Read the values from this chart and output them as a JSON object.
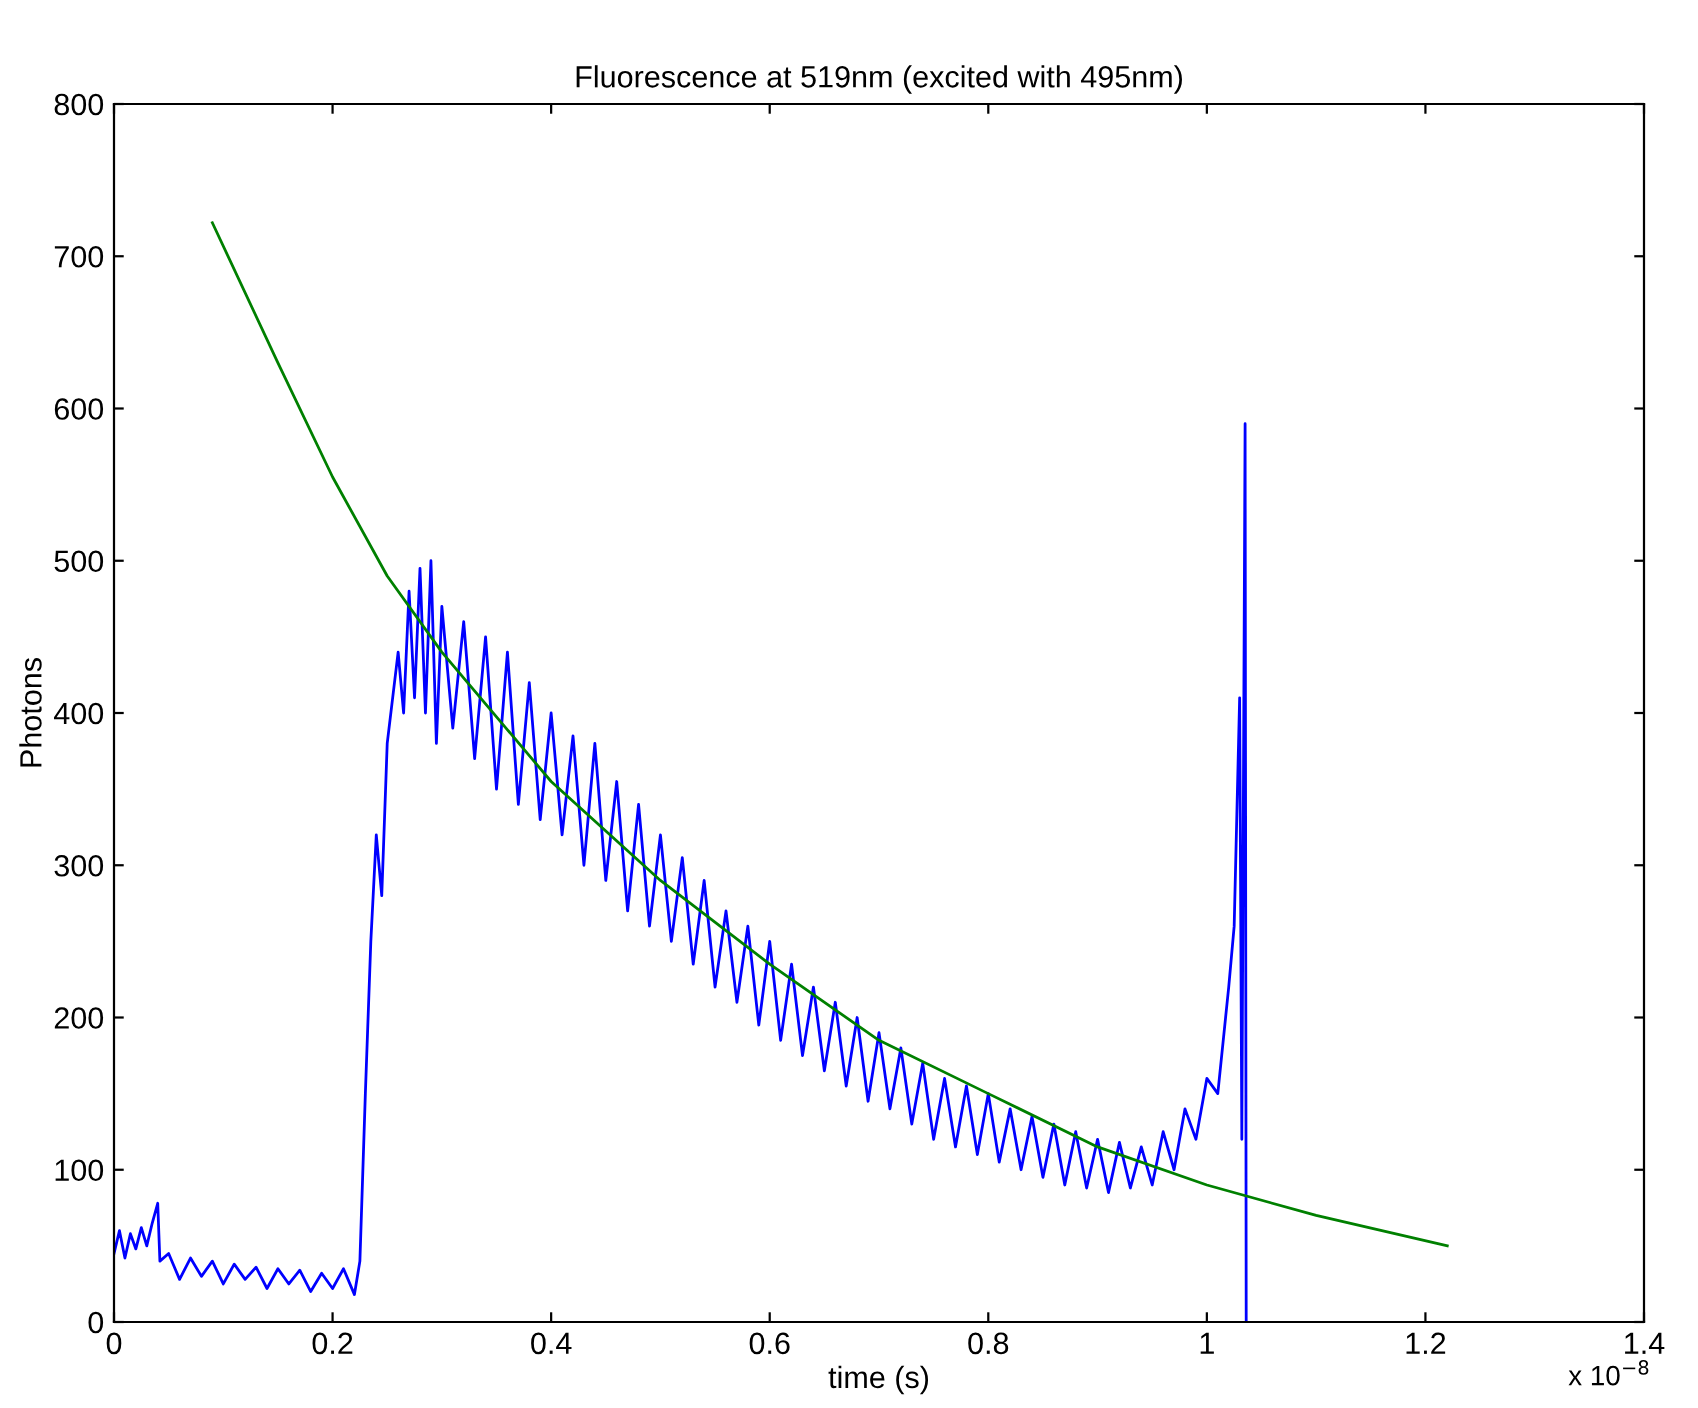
{
  "chart_data": {
    "type": "line",
    "title": "Fluorescence at 519nm (excited with 495nm)",
    "xlabel": "time (s)",
    "ylabel": "Photons",
    "annotations": [
      "x 10$^{−8}$"
    ],
    "xlim": [
      0,
      1.4
    ],
    "xticks": [
      0,
      0.2,
      0.4,
      0.6,
      0.8,
      1,
      1.2,
      1.4
    ],
    "ylim": [
      0,
      800
    ],
    "yticks": [
      0,
      100,
      200,
      300,
      400,
      500,
      600,
      700,
      800
    ],
    "grid": false,
    "legend": false,
    "marker": "none",
    "line_style": "solid",
    "series": [
      {
        "color": "#0000ff",
        "x": [
          0,
          0.005,
          0.01,
          0.015,
          0.02,
          0.025,
          0.03,
          0.035,
          0.04,
          0.042,
          0.05,
          0.06,
          0.07,
          0.08,
          0.09,
          0.1,
          0.11,
          0.12,
          0.13,
          0.14,
          0.15,
          0.16,
          0.17,
          0.18,
          0.19,
          0.2,
          0.21,
          0.22,
          0.225,
          0.23,
          0.235,
          0.24,
          0.245,
          0.25,
          0.26,
          0.265,
          0.27,
          0.275,
          0.28,
          0.285,
          0.29,
          0.295,
          0.3,
          0.31,
          0.32,
          0.33,
          0.34,
          0.35,
          0.36,
          0.37,
          0.38,
          0.39,
          0.4,
          0.41,
          0.42,
          0.43,
          0.44,
          0.45,
          0.46,
          0.47,
          0.48,
          0.49,
          0.5,
          0.51,
          0.52,
          0.53,
          0.54,
          0.55,
          0.56,
          0.57,
          0.58,
          0.59,
          0.6,
          0.61,
          0.62,
          0.63,
          0.64,
          0.65,
          0.66,
          0.67,
          0.68,
          0.69,
          0.7,
          0.71,
          0.72,
          0.73,
          0.74,
          0.75,
          0.76,
          0.77,
          0.78,
          0.79,
          0.8,
          0.81,
          0.82,
          0.83,
          0.84,
          0.85,
          0.86,
          0.87,
          0.88,
          0.89,
          0.9,
          0.91,
          0.92,
          0.93,
          0.94,
          0.95,
          0.96,
          0.97,
          0.98,
          0.99,
          1.0,
          1.01,
          1.02,
          1.025,
          1.03,
          1.032,
          1.035,
          1.036
        ],
        "values": [
          45,
          60,
          42,
          58,
          48,
          62,
          50,
          65,
          78,
          40,
          45,
          28,
          42,
          30,
          40,
          25,
          38,
          28,
          36,
          22,
          35,
          25,
          34,
          20,
          32,
          22,
          35,
          18,
          40,
          150,
          250,
          320,
          280,
          380,
          440,
          400,
          480,
          410,
          495,
          400,
          500,
          380,
          470,
          390,
          460,
          370,
          450,
          350,
          440,
          340,
          420,
          330,
          400,
          320,
          385,
          300,
          380,
          290,
          355,
          270,
          340,
          260,
          320,
          250,
          305,
          235,
          290,
          220,
          270,
          210,
          260,
          195,
          250,
          185,
          235,
          175,
          220,
          165,
          210,
          155,
          200,
          145,
          190,
          140,
          180,
          130,
          170,
          120,
          160,
          115,
          155,
          110,
          150,
          105,
          140,
          100,
          135,
          95,
          130,
          90,
          125,
          88,
          120,
          85,
          118,
          88,
          115,
          90,
          125,
          100,
          140,
          120,
          160,
          150,
          220,
          260,
          410,
          120,
          590,
          0
        ]
      },
      {
        "color": "#008000",
        "x": [
          0.09,
          0.15,
          0.2,
          0.25,
          0.3,
          0.4,
          0.5,
          0.6,
          0.7,
          0.8,
          0.9,
          1.0,
          1.1,
          1.22
        ],
        "values": [
          722,
          630,
          555,
          490,
          440,
          355,
          290,
          235,
          185,
          150,
          115,
          90,
          70,
          50
        ]
      }
    ]
  }
}
